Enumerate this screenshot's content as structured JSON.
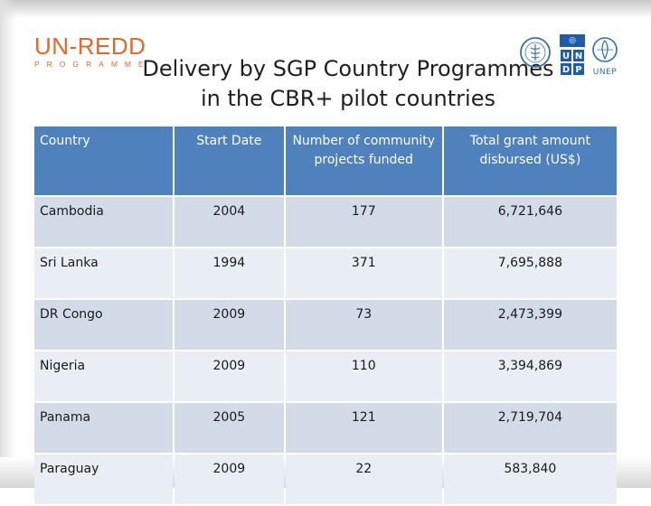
{
  "logo": {
    "main": "UN-REDD",
    "sub": "PROGRAMME"
  },
  "title": {
    "line1": "Delivery by SGP Country Programmes",
    "line2": "in the CBR+ pilot countries"
  },
  "partners": {
    "fao": "FAO",
    "undp_tiles": [
      "U",
      "N",
      "D",
      "P"
    ],
    "unep": "UNEP"
  },
  "colors": {
    "header_bg": "#4f81bd",
    "row_dark": "#d3dbe9",
    "row_light": "#e9edf4",
    "logo_accent": "#e0682c"
  },
  "table": {
    "headers": [
      "Country",
      "Start Date",
      "Number of community projects funded",
      "Total grant amount disbursed (US$)"
    ],
    "rows": [
      {
        "country": "Cambodia",
        "start": "2004",
        "projects": "177",
        "grant": "6,721,646"
      },
      {
        "country": "Sri Lanka",
        "start": "1994",
        "projects": "371",
        "grant": "7,695,888"
      },
      {
        "country": "DR Congo",
        "start": "2009",
        "projects": "73",
        "grant": "2,473,399"
      },
      {
        "country": "Nigeria",
        "start": "2009",
        "projects": "110",
        "grant": "3,394,869"
      },
      {
        "country": "Panama",
        "start": "2005",
        "projects": "121",
        "grant": "2,719,704"
      },
      {
        "country": "Paraguay",
        "start": "2009",
        "projects": "22",
        "grant": "583,840"
      }
    ]
  }
}
